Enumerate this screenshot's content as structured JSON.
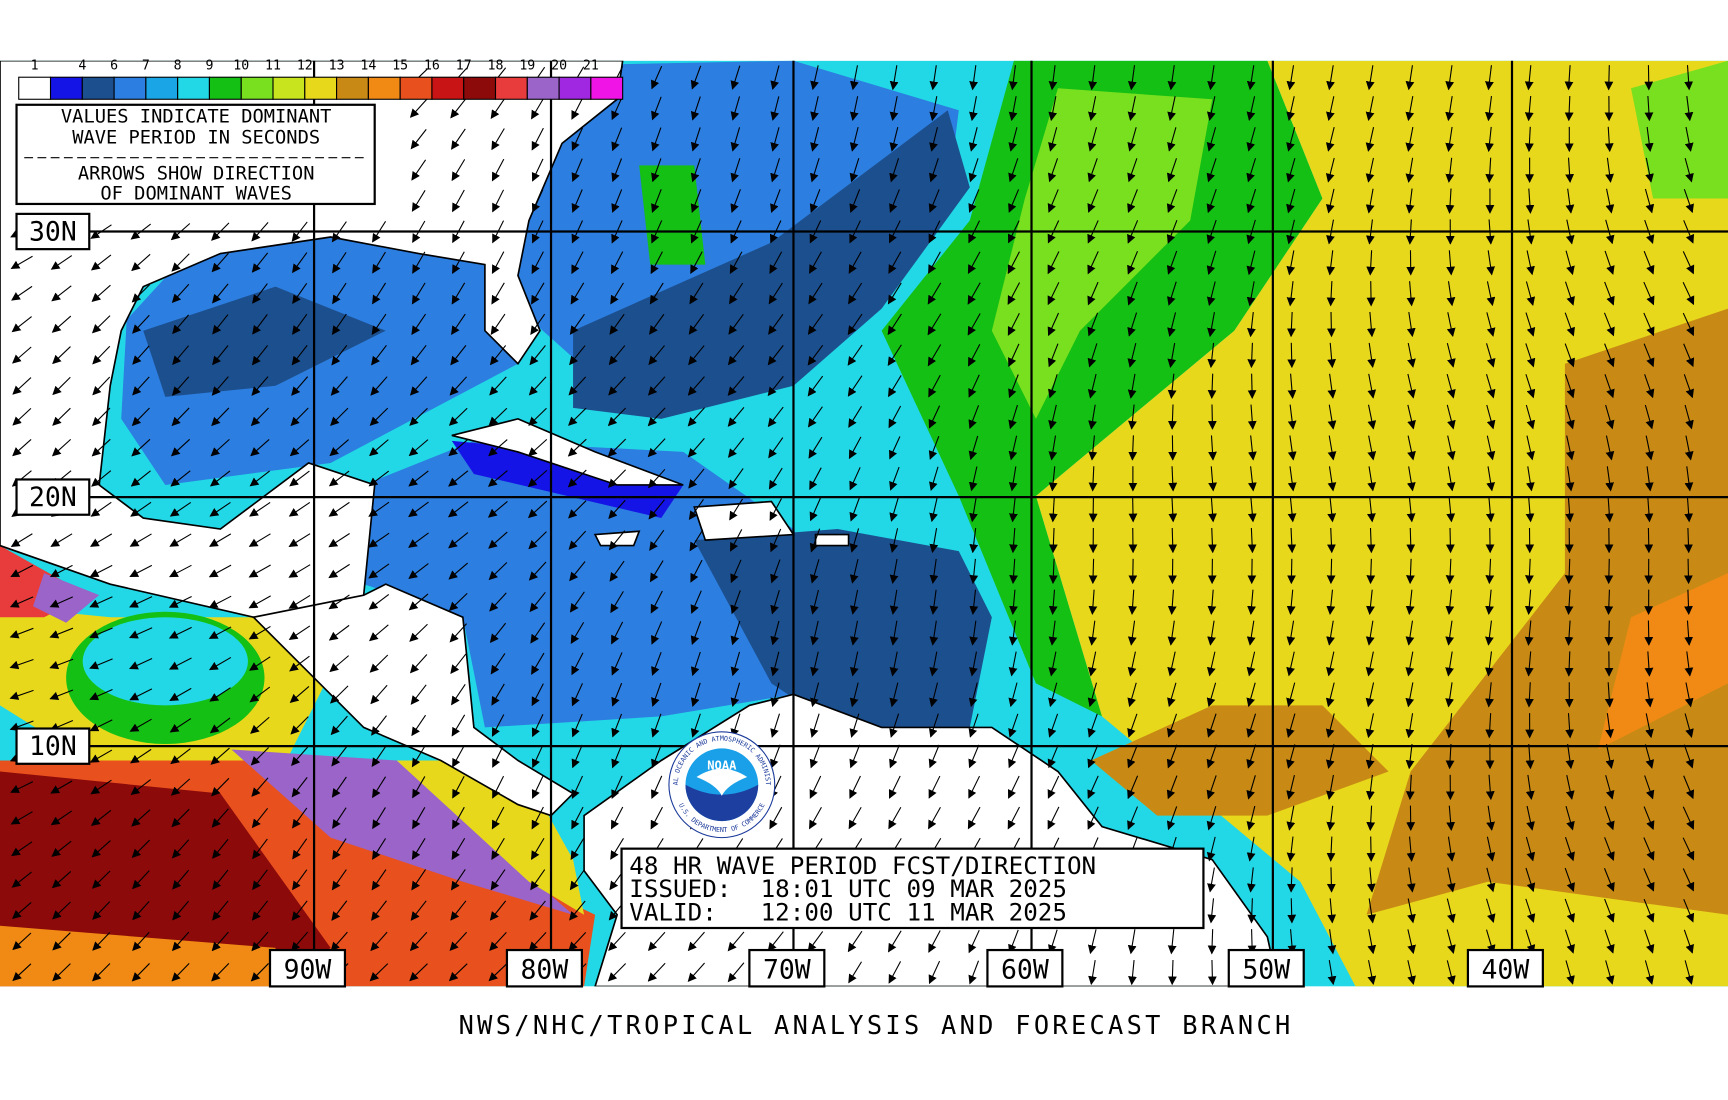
{
  "legend": {
    "labels": [
      "1",
      "4",
      "6",
      "7",
      "8",
      "9",
      "10",
      "11",
      "12",
      "13",
      "14",
      "15",
      "16",
      "17",
      "18",
      "19",
      "20",
      "21"
    ],
    "colors": [
      "#ffffff",
      "#1414e6",
      "#1c4f8e",
      "#2c7ee0",
      "#1aa6e6",
      "#22d8e6",
      "#14c014",
      "#78e01e",
      "#c8e41e",
      "#e8d81c",
      "#c88a14",
      "#f08a14",
      "#e8501e",
      "#c81414",
      "#8c0a0a",
      "#e83c3c",
      "#9a64c8",
      "#a028e0",
      "#f014e6"
    ]
  },
  "notes": {
    "period": [
      "VALUES INDICATE DOMINANT",
      "WAVE PERIOD IN SECONDS"
    ],
    "direction": [
      "ARROWS SHOW DIRECTION",
      "OF DOMINANT WAVES"
    ]
  },
  "latitudes": [
    "30N",
    "20N",
    "10N"
  ],
  "longitudes": [
    "90W",
    "80W",
    "70W",
    "60W",
    "50W",
    "40W"
  ],
  "logo": {
    "name": "NOAA",
    "ring_top": "NATIONAL OCEANIC AND ATMOSPHERIC ADMINISTRATION",
    "ring_bottom": "U.S. DEPARTMENT OF COMMERCE"
  },
  "info": [
    "48 HR WAVE PERIOD FCST/DIRECTION",
    "ISSUED:  18:01 UTC 09 MAR 2025",
    "VALID:   12:00 UTC 11 MAR 2025"
  ],
  "footer": "NWS/NHC/TROPICAL ANALYSIS AND FORECAST BRANCH"
}
